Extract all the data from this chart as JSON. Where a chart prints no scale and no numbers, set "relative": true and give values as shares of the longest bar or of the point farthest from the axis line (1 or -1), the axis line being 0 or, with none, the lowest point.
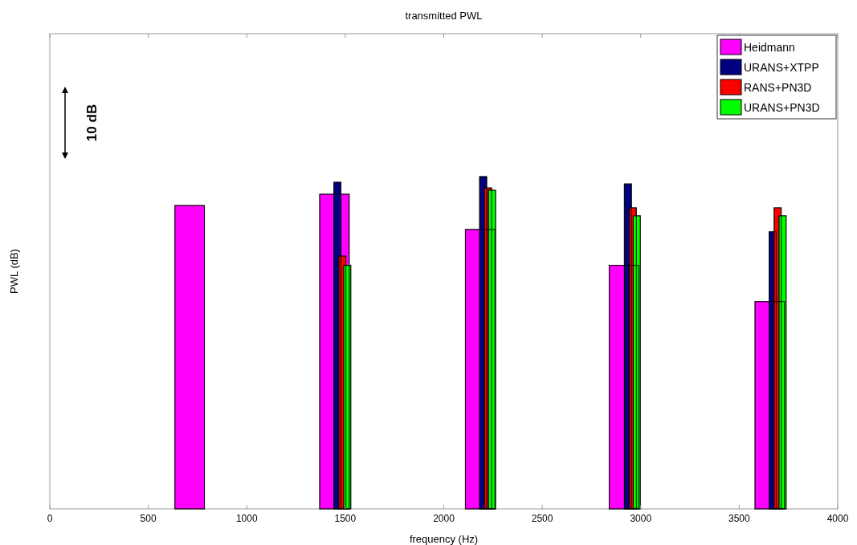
{
  "chart_data": {
    "type": "bar",
    "title": "transmitted PWL",
    "xlabel": "frequency (Hz)",
    "ylabel": "PWL (dB)",
    "relative": true,
    "xlim": [
      0,
      4000
    ],
    "xticks": [
      0,
      500,
      1000,
      1500,
      2000,
      2500,
      3000,
      3500,
      4000
    ],
    "grid": false,
    "legend": "top right",
    "annotations": [
      "10 dB"
    ],
    "series": [
      {
        "name": "Heidmann",
        "color": "#ff00ff",
        "x": [
          710,
          1445,
          2185,
          2915,
          3655
        ],
        "values": [
          0.913,
          0.947,
          0.841,
          0.733,
          0.624
        ]
      },
      {
        "name": "URANS+XTPP",
        "color": "#000080",
        "x": [
          1460,
          2200,
          2935,
          3670
        ],
        "values": [
          0.983,
          1,
          0.978,
          0.834
        ]
      },
      {
        "name": "RANS+PN3D",
        "color": "#ff0000",
        "x": [
          1485,
          2225,
          2960,
          3695
        ],
        "values": [
          0.761,
          0.966,
          0.906,
          0.906
        ]
      },
      {
        "name": "URANS+PN3D",
        "color": "#00ff00",
        "x": [
          1510,
          2245,
          2980,
          3720
        ],
        "values": [
          0.733,
          0.959,
          0.882,
          0.882
        ]
      }
    ]
  }
}
